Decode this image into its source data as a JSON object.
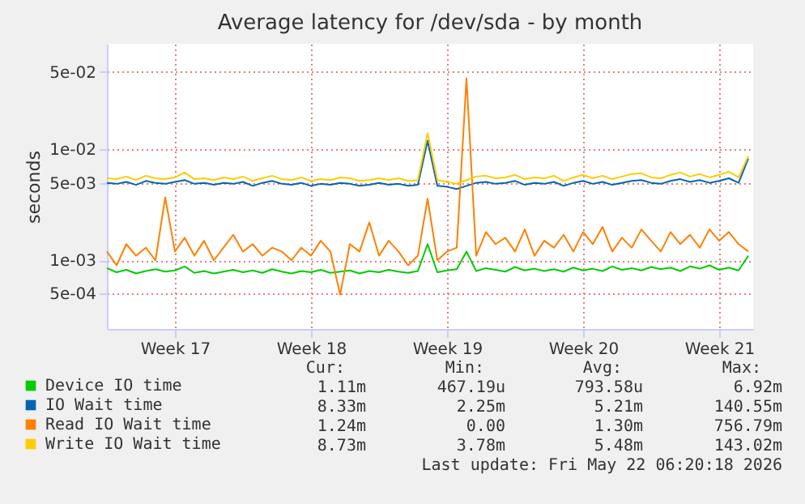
{
  "chart_data": {
    "type": "line",
    "title": "Average latency for /dev/sda - by month",
    "ylabel": "seconds",
    "log": "y",
    "grid": true,
    "legend": "bottom",
    "line_style": "solid",
    "marker": "none",
    "categories": [
      null,
      null,
      null,
      null,
      null,
      null,
      null,
      "Week 17",
      null,
      null,
      null,
      null,
      null,
      null,
      null,
      null,
      null,
      null,
      null,
      null,
      null,
      "Week 18",
      null,
      null,
      null,
      null,
      null,
      null,
      null,
      null,
      null,
      null,
      null,
      null,
      null,
      "Week 19",
      null,
      null,
      null,
      null,
      null,
      null,
      null,
      null,
      null,
      null,
      null,
      null,
      null,
      "Week 20",
      null,
      null,
      null,
      null,
      null,
      null,
      null,
      null,
      null,
      null,
      null,
      null,
      null,
      "Week 21",
      null,
      null,
      null
    ],
    "ylim": [
      0.00024,
      0.09
    ],
    "yticks": [
      {
        "value": 0.0005,
        "label": "5e-04"
      },
      {
        "value": 0.001,
        "label": "1e-03"
      },
      {
        "value": 0.005,
        "label": "5e-03"
      },
      {
        "value": 0.01,
        "label": "1e-02"
      },
      {
        "value": 0.05,
        "label": "5e-02"
      }
    ],
    "series": [
      {
        "name": "Device IO time",
        "color": "#00cc00",
        "values": [
          0.00085,
          0.00078,
          0.00082,
          0.00076,
          0.0008,
          0.00083,
          0.00079,
          0.00081,
          0.00088,
          0.00077,
          0.0008,
          0.00076,
          0.00079,
          0.00082,
          0.00078,
          0.00081,
          0.00077,
          0.00083,
          0.00079,
          0.00076,
          0.0008,
          0.00078,
          0.00082,
          0.00077,
          0.00079,
          0.00081,
          0.00076,
          0.0008,
          0.00078,
          0.00082,
          0.00079,
          0.00077,
          0.0008,
          0.0014,
          0.00078,
          0.00081,
          0.00083,
          0.0012,
          0.0008,
          0.00085,
          0.00082,
          0.00079,
          0.00087,
          0.00081,
          0.00084,
          0.0008,
          0.00083,
          0.00079,
          0.00086,
          0.00081,
          0.00084,
          0.0008,
          0.00088,
          0.00082,
          0.00085,
          0.00081,
          0.00087,
          0.00083,
          0.00086,
          0.0008,
          0.00088,
          0.00084,
          0.0009,
          0.00082,
          0.00086,
          0.00081,
          0.0011
        ]
      },
      {
        "name": "IO Wait time",
        "color": "#0066b3",
        "values": [
          0.005,
          0.0049,
          0.0051,
          0.0048,
          0.0052,
          0.005,
          0.0049,
          0.0051,
          0.0053,
          0.0049,
          0.005,
          0.0048,
          0.005,
          0.0049,
          0.0051,
          0.0047,
          0.005,
          0.0052,
          0.0049,
          0.0048,
          0.005,
          0.0047,
          0.0049,
          0.0048,
          0.005,
          0.0049,
          0.0047,
          0.0048,
          0.005,
          0.0048,
          0.0049,
          0.0047,
          0.0048,
          0.012,
          0.0047,
          0.0046,
          0.0044,
          0.0047,
          0.005,
          0.0051,
          0.0049,
          0.005,
          0.0052,
          0.0048,
          0.005,
          0.0049,
          0.0051,
          0.0047,
          0.005,
          0.0052,
          0.0049,
          0.0051,
          0.0048,
          0.005,
          0.0052,
          0.0053,
          0.005,
          0.0049,
          0.0052,
          0.0054,
          0.0051,
          0.0053,
          0.005,
          0.0052,
          0.0055,
          0.005,
          0.0083
        ]
      },
      {
        "name": "Read IO Wait time",
        "color": "#ff8000",
        "values": [
          0.0012,
          0.0009,
          0.0014,
          0.0011,
          0.0013,
          0.001,
          0.0037,
          0.0012,
          0.0016,
          0.0011,
          0.0015,
          0.001,
          0.0013,
          0.0017,
          0.0012,
          0.0014,
          0.0011,
          0.0013,
          0.0012,
          0.001,
          0.0013,
          0.0011,
          0.0015,
          0.0012,
          0.00049,
          0.0014,
          0.0012,
          0.0022,
          0.0011,
          0.0015,
          0.0012,
          0.0009,
          0.0011,
          0.0036,
          0.001,
          0.0012,
          0.0013,
          0.044,
          0.0011,
          0.0018,
          0.0014,
          0.0016,
          0.0012,
          0.0019,
          0.0011,
          0.0015,
          0.0013,
          0.0017,
          0.0012,
          0.0018,
          0.0014,
          0.002,
          0.0012,
          0.0016,
          0.0013,
          0.0019,
          0.0015,
          0.0012,
          0.0018,
          0.0014,
          0.0017,
          0.0013,
          0.0019,
          0.0015,
          0.0018,
          0.0014,
          0.0012
        ]
      },
      {
        "name": "Write IO Wait time",
        "color": "#ffcc00",
        "values": [
          0.0055,
          0.0054,
          0.0057,
          0.0053,
          0.0058,
          0.0055,
          0.0054,
          0.0056,
          0.0062,
          0.0054,
          0.0055,
          0.0053,
          0.0056,
          0.0054,
          0.0057,
          0.0052,
          0.0055,
          0.0058,
          0.0054,
          0.0053,
          0.0056,
          0.0052,
          0.0054,
          0.0053,
          0.0056,
          0.0055,
          0.0052,
          0.0053,
          0.0055,
          0.0053,
          0.0055,
          0.0052,
          0.0053,
          0.014,
          0.0053,
          0.0051,
          0.0049,
          0.0053,
          0.0057,
          0.0058,
          0.0055,
          0.0056,
          0.0059,
          0.0054,
          0.0056,
          0.0055,
          0.0058,
          0.0052,
          0.0056,
          0.0059,
          0.0055,
          0.0058,
          0.0054,
          0.0057,
          0.006,
          0.0061,
          0.0056,
          0.0055,
          0.0059,
          0.0062,
          0.0057,
          0.006,
          0.0056,
          0.0059,
          0.0063,
          0.0056,
          0.0087
        ]
      }
    ],
    "annotations": [
      "Cur:",
      "Min:",
      "Avg:",
      "Max:",
      "1.11m",
      "467.19u",
      "793.58u",
      "6.92m",
      "8.33m",
      "2.25m",
      "5.21m",
      "140.55m",
      "1.24m",
      "0.00",
      "1.30m",
      "756.79m",
      "8.73m",
      "3.78m",
      "5.48m",
      "143.02m",
      "Last update: Fri May 22 06:20:18 2026"
    ]
  }
}
